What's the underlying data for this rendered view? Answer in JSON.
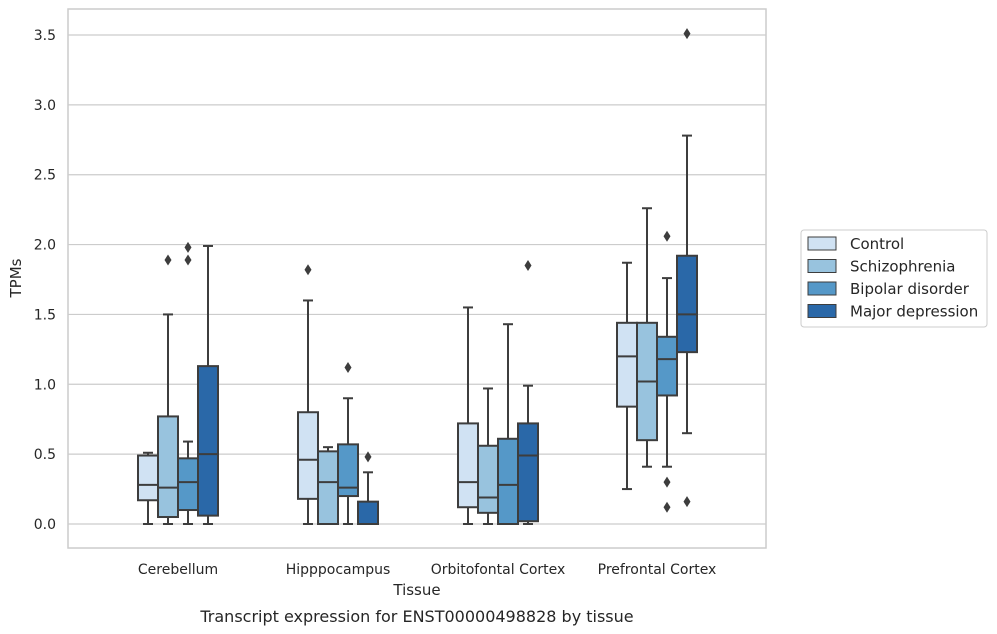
{
  "chart_data": {
    "type": "box",
    "xlabel": "Tissue",
    "ylabel": "TPMs",
    "caption": "Transcript expression for ENST00000498828 by tissue",
    "ylim": [
      -0.17,
      3.69
    ],
    "yticks": [
      "0.0",
      "0.5",
      "1.0",
      "1.5",
      "2.0",
      "2.5",
      "3.0",
      "3.5"
    ],
    "grid": true,
    "legend_position": "right",
    "categories": [
      "Cerebellum",
      "Hipppocampus",
      "Orbitofontal Cortex",
      "Prefrontal Cortex"
    ],
    "series": [
      {
        "name": "Control",
        "color": "#d0e2f3",
        "boxes": [
          {
            "whislo": 0.0,
            "q1": 0.17,
            "med": 0.28,
            "q3": 0.49,
            "whishi": 0.51,
            "fliers": []
          },
          {
            "whislo": 0.0,
            "q1": 0.18,
            "med": 0.46,
            "q3": 0.8,
            "whishi": 1.6,
            "fliers": [
              1.82
            ]
          },
          {
            "whislo": 0.0,
            "q1": 0.12,
            "med": 0.3,
            "q3": 0.72,
            "whishi": 1.55,
            "fliers": []
          },
          {
            "whislo": 0.25,
            "q1": 0.84,
            "med": 1.2,
            "q3": 1.44,
            "whishi": 1.87,
            "fliers": []
          }
        ]
      },
      {
        "name": "Schizophrenia",
        "color": "#98c3de",
        "boxes": [
          {
            "whislo": 0.0,
            "q1": 0.05,
            "med": 0.26,
            "q3": 0.77,
            "whishi": 1.5,
            "fliers": [
              1.89
            ]
          },
          {
            "whislo": 0.0,
            "q1": 0.0,
            "med": 0.3,
            "q3": 0.52,
            "whishi": 0.55,
            "fliers": []
          },
          {
            "whislo": 0.0,
            "q1": 0.08,
            "med": 0.19,
            "q3": 0.56,
            "whishi": 0.97,
            "fliers": []
          },
          {
            "whislo": 0.41,
            "q1": 0.6,
            "med": 1.02,
            "q3": 1.44,
            "whishi": 2.26,
            "fliers": []
          }
        ]
      },
      {
        "name": "Bipolar disorder",
        "color": "#5598c8",
        "boxes": [
          {
            "whislo": 0.0,
            "q1": 0.1,
            "med": 0.3,
            "q3": 0.47,
            "whishi": 0.59,
            "fliers": [
              1.89,
              1.98
            ]
          },
          {
            "whislo": 0.0,
            "q1": 0.2,
            "med": 0.26,
            "q3": 0.57,
            "whishi": 0.9,
            "fliers": [
              1.12
            ]
          },
          {
            "whislo": 0.0,
            "q1": 0.0,
            "med": 0.28,
            "q3": 0.61,
            "whishi": 1.43,
            "fliers": []
          },
          {
            "whislo": 0.41,
            "q1": 0.92,
            "med": 1.18,
            "q3": 1.34,
            "whishi": 1.76,
            "fliers": [
              0.12,
              0.3,
              2.06
            ]
          }
        ]
      },
      {
        "name": "Major depression",
        "color": "#2a68a8",
        "boxes": [
          {
            "whislo": 0.0,
            "q1": 0.06,
            "med": 0.5,
            "q3": 1.13,
            "whishi": 1.99,
            "fliers": []
          },
          {
            "whislo": 0.0,
            "q1": 0.0,
            "med": 0.0,
            "q3": 0.16,
            "whishi": 0.37,
            "fliers": [
              0.48
            ]
          },
          {
            "whislo": 0.0,
            "q1": 0.02,
            "med": 0.49,
            "q3": 0.72,
            "whishi": 0.99,
            "fliers": [
              1.85
            ]
          },
          {
            "whislo": 0.65,
            "q1": 1.23,
            "med": 1.5,
            "q3": 1.92,
            "whishi": 2.78,
            "fliers": [
              0.16,
              3.51
            ]
          }
        ]
      }
    ]
  }
}
